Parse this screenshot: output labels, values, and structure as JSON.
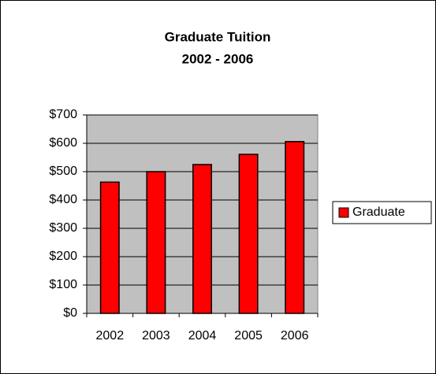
{
  "chart_data": {
    "type": "bar",
    "title": "Graduate Tuition",
    "subtitle": "2002 - 2006",
    "categories": [
      "2002",
      "2003",
      "2004",
      "2005",
      "2006"
    ],
    "series": [
      {
        "name": "Graduate",
        "color": "#ff0000",
        "values": [
          463,
          500,
          525,
          561,
          606
        ]
      }
    ],
    "ylim": [
      0,
      700
    ],
    "yticks": [
      {
        "value": 0,
        "label": "$0"
      },
      {
        "value": 100,
        "label": "$100"
      },
      {
        "value": 200,
        "label": "$200"
      },
      {
        "value": 300,
        "label": "$300"
      },
      {
        "value": 400,
        "label": "$400"
      },
      {
        "value": 500,
        "label": "$500"
      },
      {
        "value": 600,
        "label": "$600"
      },
      {
        "value": 700,
        "label": "$700"
      }
    ],
    "grid": true,
    "legend": "right"
  }
}
